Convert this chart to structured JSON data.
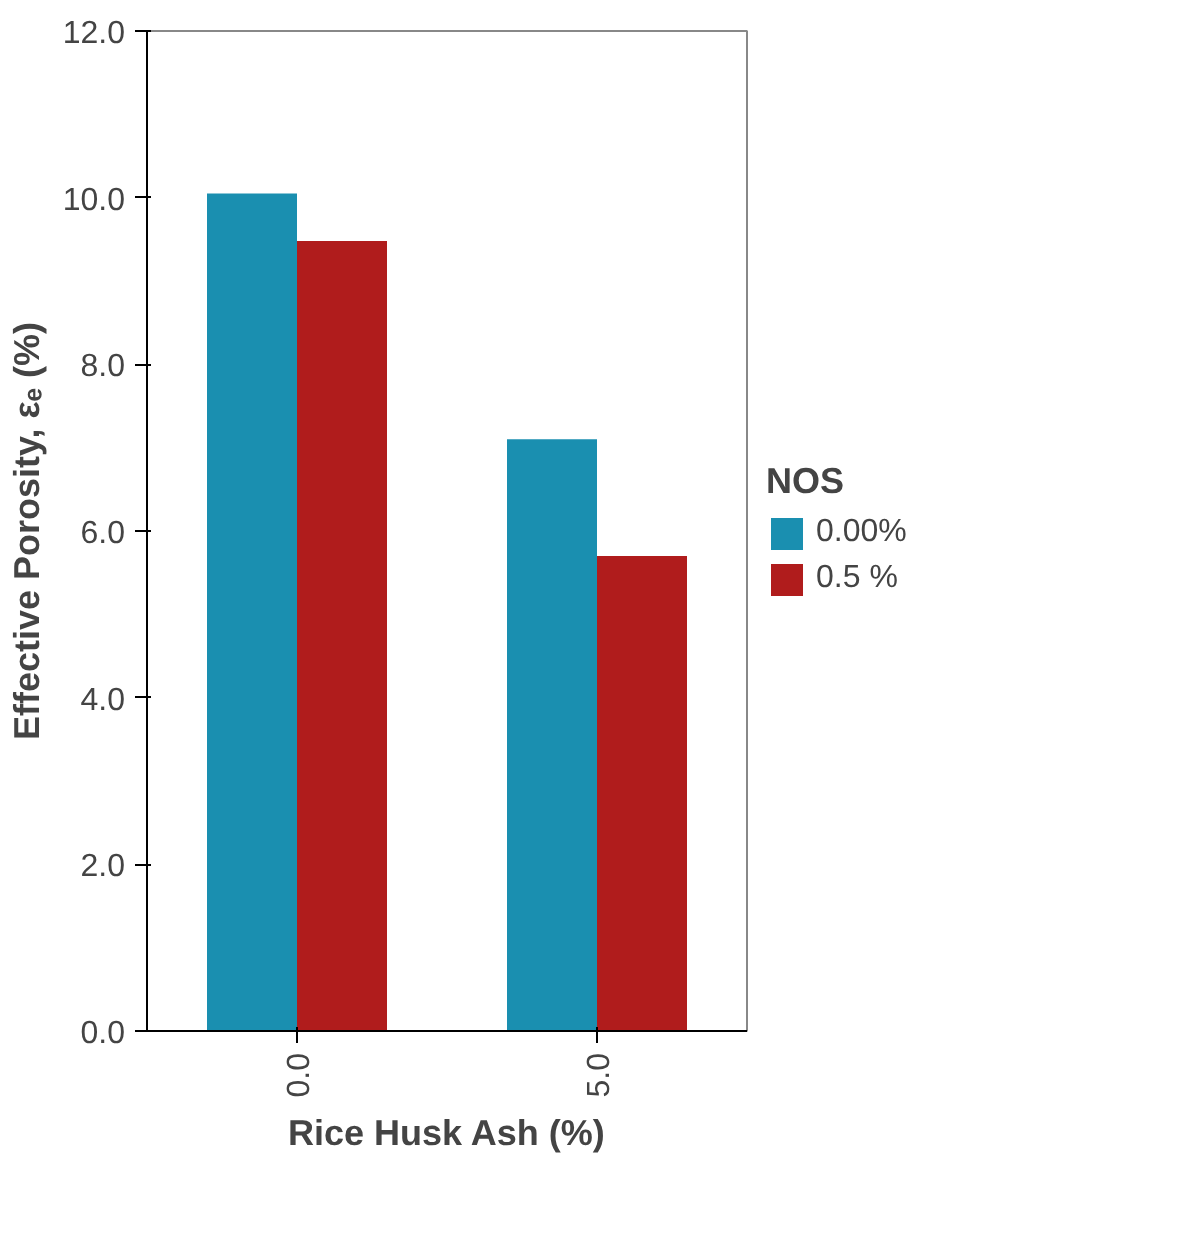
{
  "chart_data": {
    "type": "bar",
    "xlabel": "Rice Husk Ash (%)",
    "ylabel": "Effective Porosity, εₑ (%)",
    "legend_title": "NOS",
    "categories": [
      "0.0",
      "5.0"
    ],
    "series": [
      {
        "name": "0.00%",
        "color": "#1a8fb0",
        "values": [
          10.05,
          7.1
        ]
      },
      {
        "name": "0.5 %",
        "color": "#b01c1c",
        "values": [
          9.48,
          5.7
        ]
      }
    ],
    "ylim": [
      0,
      12
    ],
    "yticks": [
      {
        "value": 0,
        "label": "0.0"
      },
      {
        "value": 2,
        "label": "2.0"
      },
      {
        "value": 4,
        "label": "4.0"
      },
      {
        "value": 6,
        "label": "6.0"
      },
      {
        "value": 8,
        "label": "8.0"
      },
      {
        "value": 10,
        "label": "10.0"
      },
      {
        "value": 12,
        "label": "12.0"
      }
    ],
    "grid": false,
    "legend": "right"
  }
}
